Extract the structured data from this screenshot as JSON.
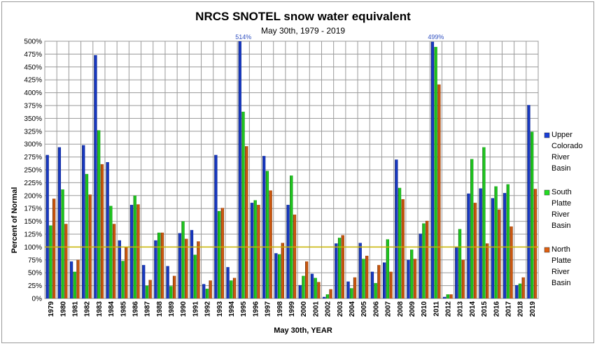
{
  "chart_data": {
    "type": "bar",
    "title": "NRCS SNOTEL snow water equivalent",
    "subtitle": "May 30th, 1979 - 2019",
    "xlabel": "May 30th, YEAR",
    "ylabel": "Percent of Normal",
    "ylim": [
      0,
      500
    ],
    "y_ticks": [
      "0%",
      "25%",
      "50%",
      "75%",
      "100%",
      "125%",
      "150%",
      "175%",
      "200%",
      "225%",
      "250%",
      "275%",
      "300%",
      "325%",
      "350%",
      "375%",
      "400%",
      "425%",
      "450%",
      "475%",
      "500%"
    ],
    "grid": true,
    "reference_line": 100,
    "reference_line_color": "#c8b400",
    "legend_position": "right",
    "categories": [
      "1979",
      "1980",
      "1981",
      "1982",
      "1983",
      "1984",
      "1985",
      "1986",
      "1987",
      "1988",
      "1989",
      "1990",
      "1991",
      "1992",
      "1993",
      "1994",
      "1995",
      "1996",
      "1997",
      "1998",
      "1999",
      "2000",
      "2001",
      "2002",
      "2003",
      "2004",
      "2005",
      "2006",
      "2007",
      "2008",
      "2009",
      "2010",
      "2011",
      "2012",
      "2013",
      "2014",
      "2015",
      "2016",
      "2017",
      "2018",
      "2019"
    ],
    "series": [
      {
        "name": "Upper Colorado River Basin",
        "color": "#1a3fd8",
        "values": [
          279,
          294,
          72,
          298,
          473,
          265,
          113,
          182,
          65,
          113,
          63,
          127,
          133,
          28,
          279,
          61,
          514,
          186,
          277,
          88,
          182,
          26,
          48,
          3,
          107,
          33,
          108,
          52,
          70,
          270,
          75,
          126,
          499,
          3,
          101,
          204,
          214,
          195,
          205,
          26,
          376
        ]
      },
      {
        "name": "South Platte River Basin",
        "color": "#22dd22",
        "values": [
          142,
          212,
          52,
          242,
          327,
          180,
          73,
          200,
          25,
          128,
          24,
          150,
          85,
          19,
          170,
          35,
          363,
          191,
          248,
          86,
          239,
          44,
          40,
          8,
          118,
          20,
          77,
          30,
          115,
          215,
          95,
          146,
          489,
          8,
          135,
          271,
          294,
          218,
          222,
          29,
          324
        ]
      },
      {
        "name": "North Platte River Basin",
        "color": "#e06010",
        "values": [
          194,
          145,
          75,
          202,
          261,
          145,
          100,
          183,
          36,
          128,
          44,
          116,
          111,
          35,
          176,
          40,
          296,
          182,
          210,
          108,
          163,
          72,
          32,
          18,
          123,
          41,
          83,
          65,
          52,
          193,
          77,
          151,
          416,
          8,
          75,
          186,
          107,
          173,
          140,
          41,
          213
        ]
      }
    ],
    "annotations": [
      {
        "category": "1995",
        "text": "514%"
      },
      {
        "category": "2011",
        "text": "499%"
      }
    ]
  }
}
